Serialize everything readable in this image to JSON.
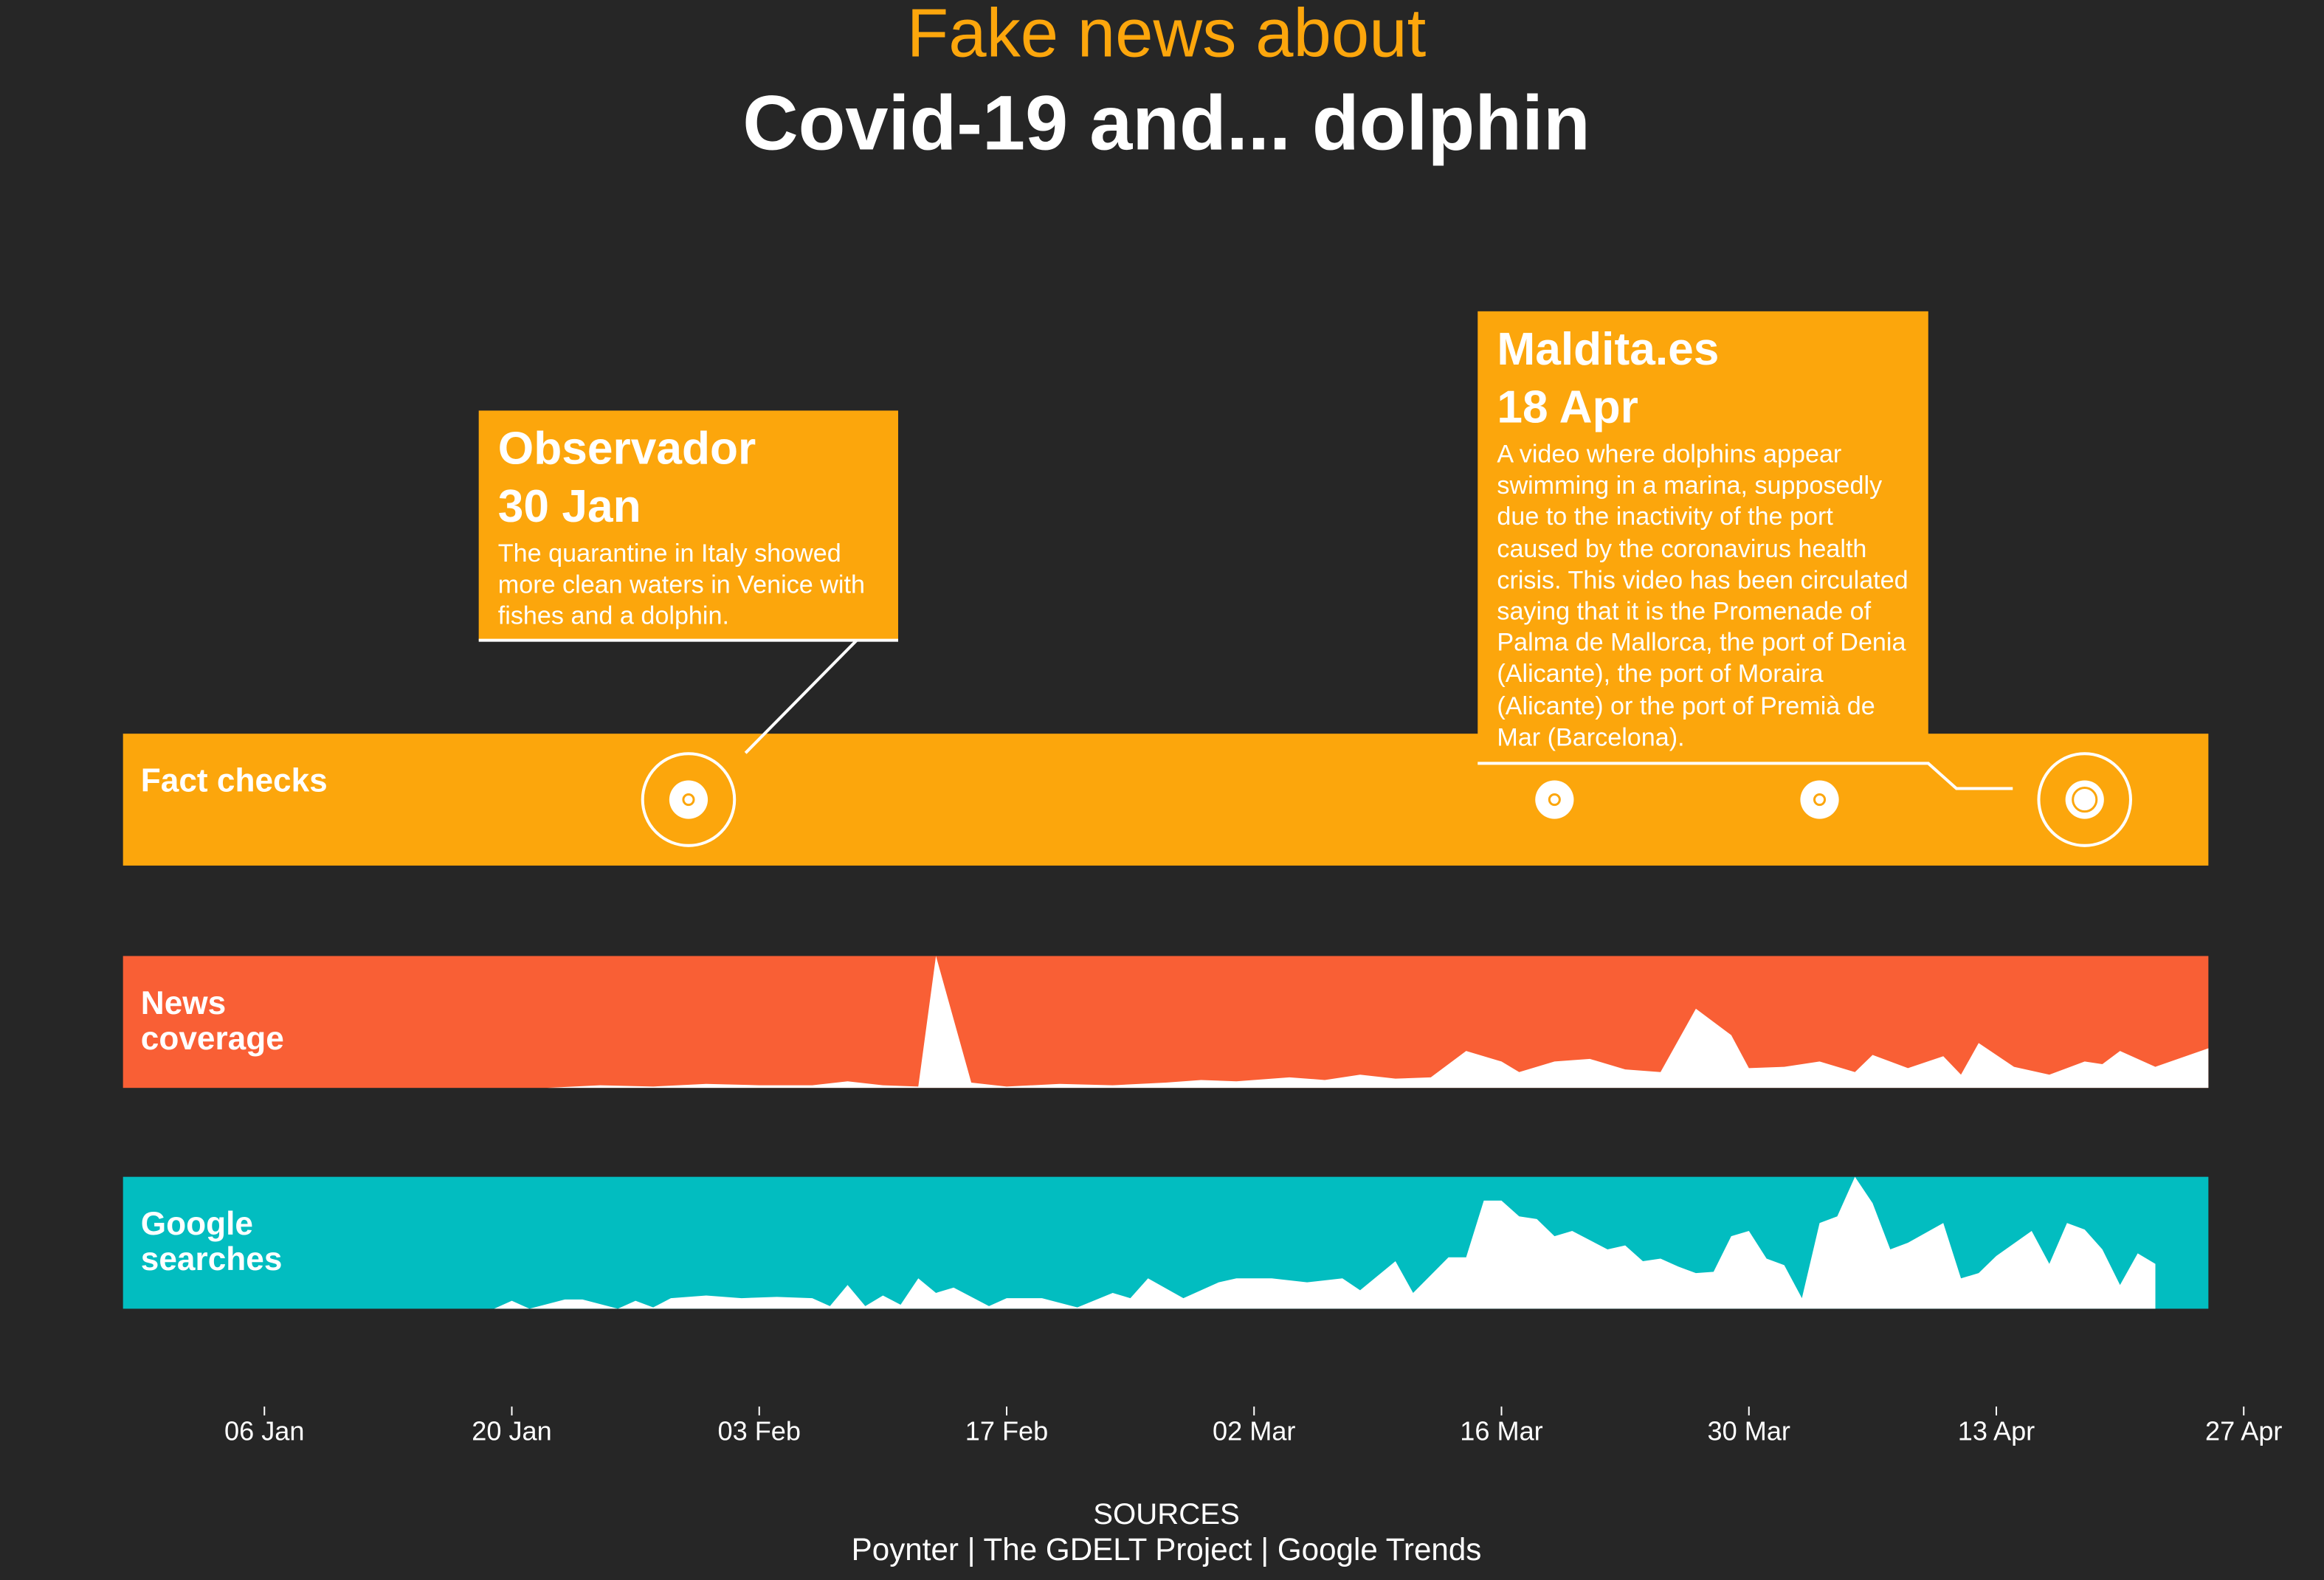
{
  "chart_data": {
    "type": "timeline",
    "title": "Fake news about",
    "subtitle": "Covid-19 and... dolphin",
    "xlim": [
      "29 Dec",
      "25 Apr"
    ],
    "xticks": [
      "06 Jan",
      "20 Jan",
      "03 Feb",
      "17 Feb",
      "02 Mar",
      "16 Mar",
      "30 Mar",
      "13 Apr",
      "27 Apr"
    ],
    "ylim": [
      0,
      100
    ],
    "series": [
      {
        "name": "Fact checks",
        "color": "#fca60c",
        "events": [
          {
            "date": "30 Jan",
            "source": "Observador",
            "text": "The quarantine in Italy showed more clean waters in Venice with fishes and a dolphin."
          },
          {
            "date": "19 Mar"
          },
          {
            "date": "03 Apr"
          },
          {
            "date": "18 Apr",
            "source": "Maldita.es",
            "text": "A video where dolphins appear swimming in a marina, supposedly due to the inactivity of the port caused by the coronavirus health crisis. This video has been circulated saying that it is the Promenade of Palma de Mallorca, the port of Denia (Alicante), the port of Moraira (Alicante) or the port of Premià de Mar (Barcelona)."
          }
        ]
      },
      {
        "name": "News coverage",
        "color": "#f95f35",
        "x": [
          "22 Jan",
          "25 Jan",
          "28 Jan",
          "31 Jan",
          "03 Feb",
          "06 Feb",
          "08 Feb",
          "10 Feb",
          "12 Feb",
          "13 Feb",
          "15 Feb",
          "17 Feb",
          "20 Feb",
          "23 Feb",
          "26 Feb",
          "28 Feb",
          "01 Mar",
          "04 Mar",
          "06 Mar",
          "08 Mar",
          "10 Mar",
          "12 Mar",
          "14 Mar",
          "16 Mar",
          "17 Mar",
          "19 Mar",
          "21 Mar",
          "23 Mar",
          "25 Mar",
          "27 Mar",
          "29 Mar",
          "30 Mar",
          "01 Apr",
          "03 Apr",
          "05 Apr",
          "06 Apr",
          "08 Apr",
          "10 Apr",
          "11 Apr",
          "12 Apr",
          "14 Apr",
          "16 Apr",
          "18 Apr",
          "19 Apr",
          "20 Apr",
          "22 Apr",
          "25 Apr"
        ],
        "values": [
          0,
          2,
          1,
          3,
          2,
          2,
          5,
          2,
          1,
          100,
          4,
          1,
          3,
          2,
          4,
          6,
          5,
          8,
          6,
          10,
          7,
          8,
          28,
          20,
          12,
          20,
          22,
          14,
          12,
          60,
          40,
          15,
          16,
          20,
          12,
          25,
          15,
          24,
          10,
          34,
          16,
          10,
          20,
          18,
          28,
          16,
          30
        ]
      },
      {
        "name": "Google searches",
        "color": "#02bdc0",
        "x": [
          "19 Jan",
          "20 Jan",
          "21 Jan",
          "23 Jan",
          "24 Jan",
          "26 Jan",
          "27 Jan",
          "28 Jan",
          "29 Jan",
          "31 Jan",
          "02 Feb",
          "04 Feb",
          "06 Feb",
          "07 Feb",
          "08 Feb",
          "09 Feb",
          "10 Feb",
          "11 Feb",
          "12 Feb",
          "13 Feb",
          "14 Feb",
          "16 Feb",
          "17 Feb",
          "19 Feb",
          "21 Feb",
          "23 Feb",
          "24 Feb",
          "25 Feb",
          "27 Feb",
          "29 Feb",
          "01 Mar",
          "03 Mar",
          "05 Mar",
          "07 Mar",
          "08 Mar",
          "10 Mar",
          "11 Mar",
          "13 Mar",
          "14 Mar",
          "15 Mar",
          "16 Mar",
          "17 Mar",
          "18 Mar",
          "19 Mar",
          "20 Mar",
          "22 Mar",
          "23 Mar",
          "24 Mar",
          "25 Mar",
          "26 Mar",
          "27 Mar",
          "28 Mar",
          "29 Mar",
          "30 Mar",
          "31 Mar",
          "01 Apr",
          "02 Apr",
          "03 Apr",
          "04 Apr",
          "05 Apr",
          "06 Apr",
          "07 Apr",
          "08 Apr",
          "10 Apr",
          "11 Apr",
          "12 Apr",
          "13 Apr",
          "15 Apr",
          "16 Apr",
          "17 Apr",
          "18 Apr",
          "19 Apr",
          "20 Apr",
          "21 Apr",
          "22 Apr"
        ],
        "values": [
          0,
          6,
          0,
          7,
          7,
          0,
          6,
          1,
          8,
          10,
          8,
          9,
          8,
          2,
          18,
          2,
          10,
          3,
          23,
          12,
          16,
          2,
          8,
          8,
          1,
          12,
          8,
          23,
          8,
          20,
          23,
          23,
          20,
          23,
          14,
          36,
          12,
          39,
          39,
          82,
          82,
          70,
          68,
          55,
          59,
          45,
          48,
          36,
          38,
          32,
          27,
          28,
          55,
          59,
          38,
          33,
          8,
          65,
          70,
          100,
          80,
          45,
          50,
          65,
          23,
          27,
          40,
          59,
          34,
          65,
          60,
          45,
          18,
          42,
          34
        ]
      }
    ],
    "sources_title": "SOURCES",
    "sources": "Poynter | The GDELT Project | Google Trends"
  }
}
